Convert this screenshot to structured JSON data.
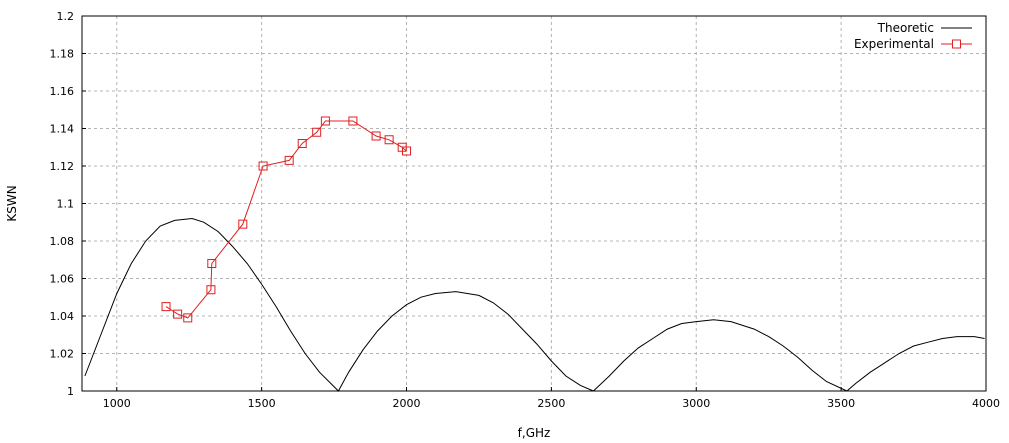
{
  "chart_data": {
    "type": "line",
    "title": "",
    "xlabel": "f,GHz",
    "ylabel": "KSWN",
    "xlim": [
      880,
      4000
    ],
    "ylim": [
      1.0,
      1.2
    ],
    "xticks": [
      1000,
      1500,
      2000,
      2500,
      3000,
      3500,
      4000
    ],
    "yticks": [
      "1",
      "1.02",
      "1.04",
      "1.06",
      "1.08",
      "1.1",
      "1.12",
      "1.14",
      "1.16",
      "1.18",
      "1.2"
    ],
    "grid": true,
    "legend_position": "top-right",
    "series": [
      {
        "name": "Theoretic",
        "color": "#000000",
        "marker": "none",
        "x": [
          890,
          950,
          1000,
          1050,
          1100,
          1150,
          1200,
          1260,
          1300,
          1350,
          1400,
          1450,
          1500,
          1550,
          1600,
          1650,
          1700,
          1765,
          1800,
          1850,
          1900,
          1950,
          2000,
          2050,
          2100,
          2170,
          2250,
          2300,
          2350,
          2400,
          2450,
          2500,
          2550,
          2600,
          2645,
          2700,
          2750,
          2800,
          2850,
          2900,
          2950,
          3000,
          3060,
          3120,
          3200,
          3250,
          3300,
          3350,
          3400,
          3450,
          3520,
          3550,
          3600,
          3650,
          3700,
          3750,
          3800,
          3850,
          3900,
          3960,
          3995
        ],
        "y": [
          1.008,
          1.032,
          1.052,
          1.068,
          1.08,
          1.088,
          1.091,
          1.092,
          1.09,
          1.085,
          1.077,
          1.068,
          1.057,
          1.045,
          1.032,
          1.02,
          1.01,
          1.0,
          1.01,
          1.022,
          1.032,
          1.04,
          1.046,
          1.05,
          1.052,
          1.053,
          1.051,
          1.047,
          1.041,
          1.033,
          1.025,
          1.016,
          1.008,
          1.003,
          1.0,
          1.008,
          1.016,
          1.023,
          1.028,
          1.033,
          1.036,
          1.037,
          1.038,
          1.037,
          1.033,
          1.029,
          1.024,
          1.018,
          1.011,
          1.005,
          1.0,
          1.004,
          1.01,
          1.015,
          1.02,
          1.024,
          1.026,
          1.028,
          1.029,
          1.029,
          1.028
        ]
      },
      {
        "name": "Experimental",
        "color": "#e02020",
        "marker": "square",
        "x": [
          1170,
          1210,
          1245,
          1325,
          1328,
          1435,
          1505,
          1595,
          1640,
          1690,
          1720,
          1815,
          1895,
          1940,
          1985,
          2000
        ],
        "y": [
          1.045,
          1.041,
          1.039,
          1.054,
          1.068,
          1.089,
          1.12,
          1.123,
          1.132,
          1.138,
          1.144,
          1.144,
          1.136,
          1.134,
          1.13,
          1.128
        ]
      }
    ]
  }
}
